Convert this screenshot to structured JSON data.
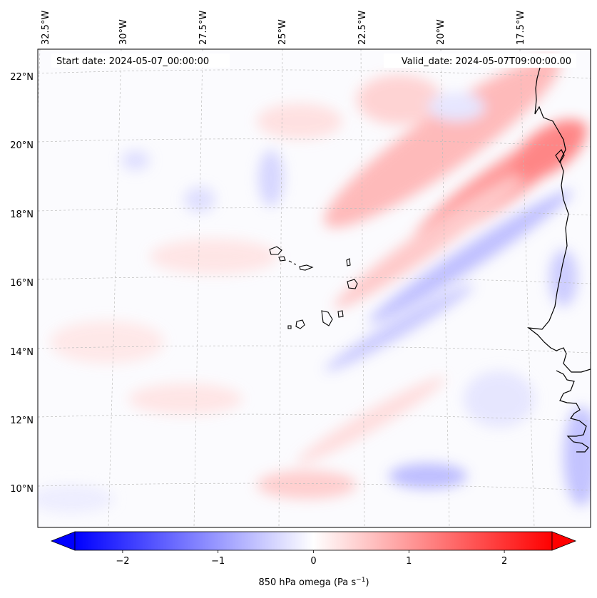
{
  "header": {
    "start_date": "Start date: 2024-05-07_00:00:00",
    "valid_date": "Valid_date: 2024-05-07T09:00:00.00"
  },
  "map": {
    "lon_labels": [
      "32.5°W",
      "30°W",
      "27.5°W",
      "25°W",
      "22.5°W",
      "20°W",
      "17.5°W"
    ],
    "lat_labels": [
      "22°N",
      "20°N",
      "18°N",
      "16°N",
      "14°N",
      "12°N",
      "10°N"
    ],
    "field": "850 hPa omega",
    "region": "Eastern tropical Atlantic, Cabo Verde islands and West African coast"
  },
  "colorbar": {
    "label": "850 hPa omega (Pa s",
    "label_sup": "−1",
    "label_close": ")",
    "ticks": [
      "−2",
      "−1",
      "0",
      "1",
      "2"
    ],
    "tick_values": [
      -2,
      -1,
      0,
      1,
      2
    ],
    "range": [
      -2.5,
      2.5
    ],
    "extend": "both",
    "colors": {
      "min": "#0000ff",
      "mid": "#ffffff",
      "max": "#ff0000"
    }
  }
}
